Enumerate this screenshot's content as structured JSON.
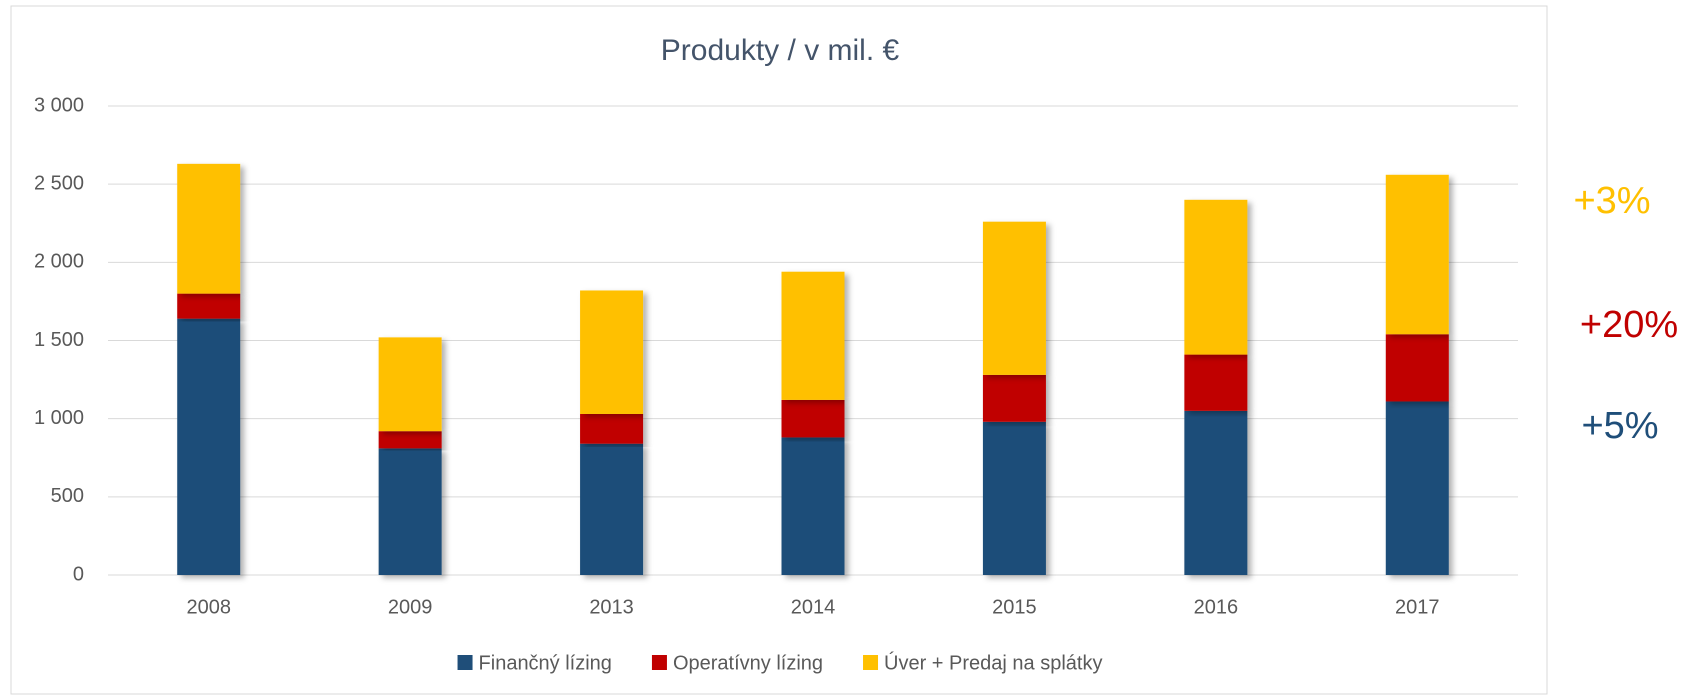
{
  "chart_data": {
    "type": "stacked_bar",
    "title": "Produkty / v mil. €",
    "categories": [
      "2008",
      "2009",
      "2013",
      "2014",
      "2015",
      "2016",
      "2017"
    ],
    "series": [
      {
        "name": "Finančný lízing",
        "color": "#1f4e79",
        "values": [
          1640,
          810,
          840,
          880,
          980,
          1050,
          1110
        ]
      },
      {
        "name": "Operatívny lízing",
        "color": "#c00000",
        "values": [
          160,
          110,
          190,
          240,
          300,
          360,
          430
        ]
      },
      {
        "name": "Úver + Predaj na splátky",
        "color": "#ffc000",
        "values": [
          830,
          600,
          790,
          820,
          980,
          990,
          1020
        ]
      }
    ],
    "ylim": [
      0,
      3000
    ],
    "yticks": [
      0,
      500,
      {
        "value": 1000,
        "label": "1 000"
      },
      {
        "value": 1500,
        "label": "1 500"
      },
      {
        "value": 2000,
        "label": "2 000"
      },
      {
        "value": 2500,
        "label": "2 500"
      },
      {
        "value": 3000,
        "label": "3 000"
      }
    ],
    "grid": true,
    "legend": "bottom",
    "annotations": [
      {
        "text": "+3%",
        "color": "#ffc000"
      },
      {
        "text": "+20%",
        "color": "#c00000"
      },
      {
        "text": "+5%",
        "color": "#1f4e79"
      }
    ]
  }
}
